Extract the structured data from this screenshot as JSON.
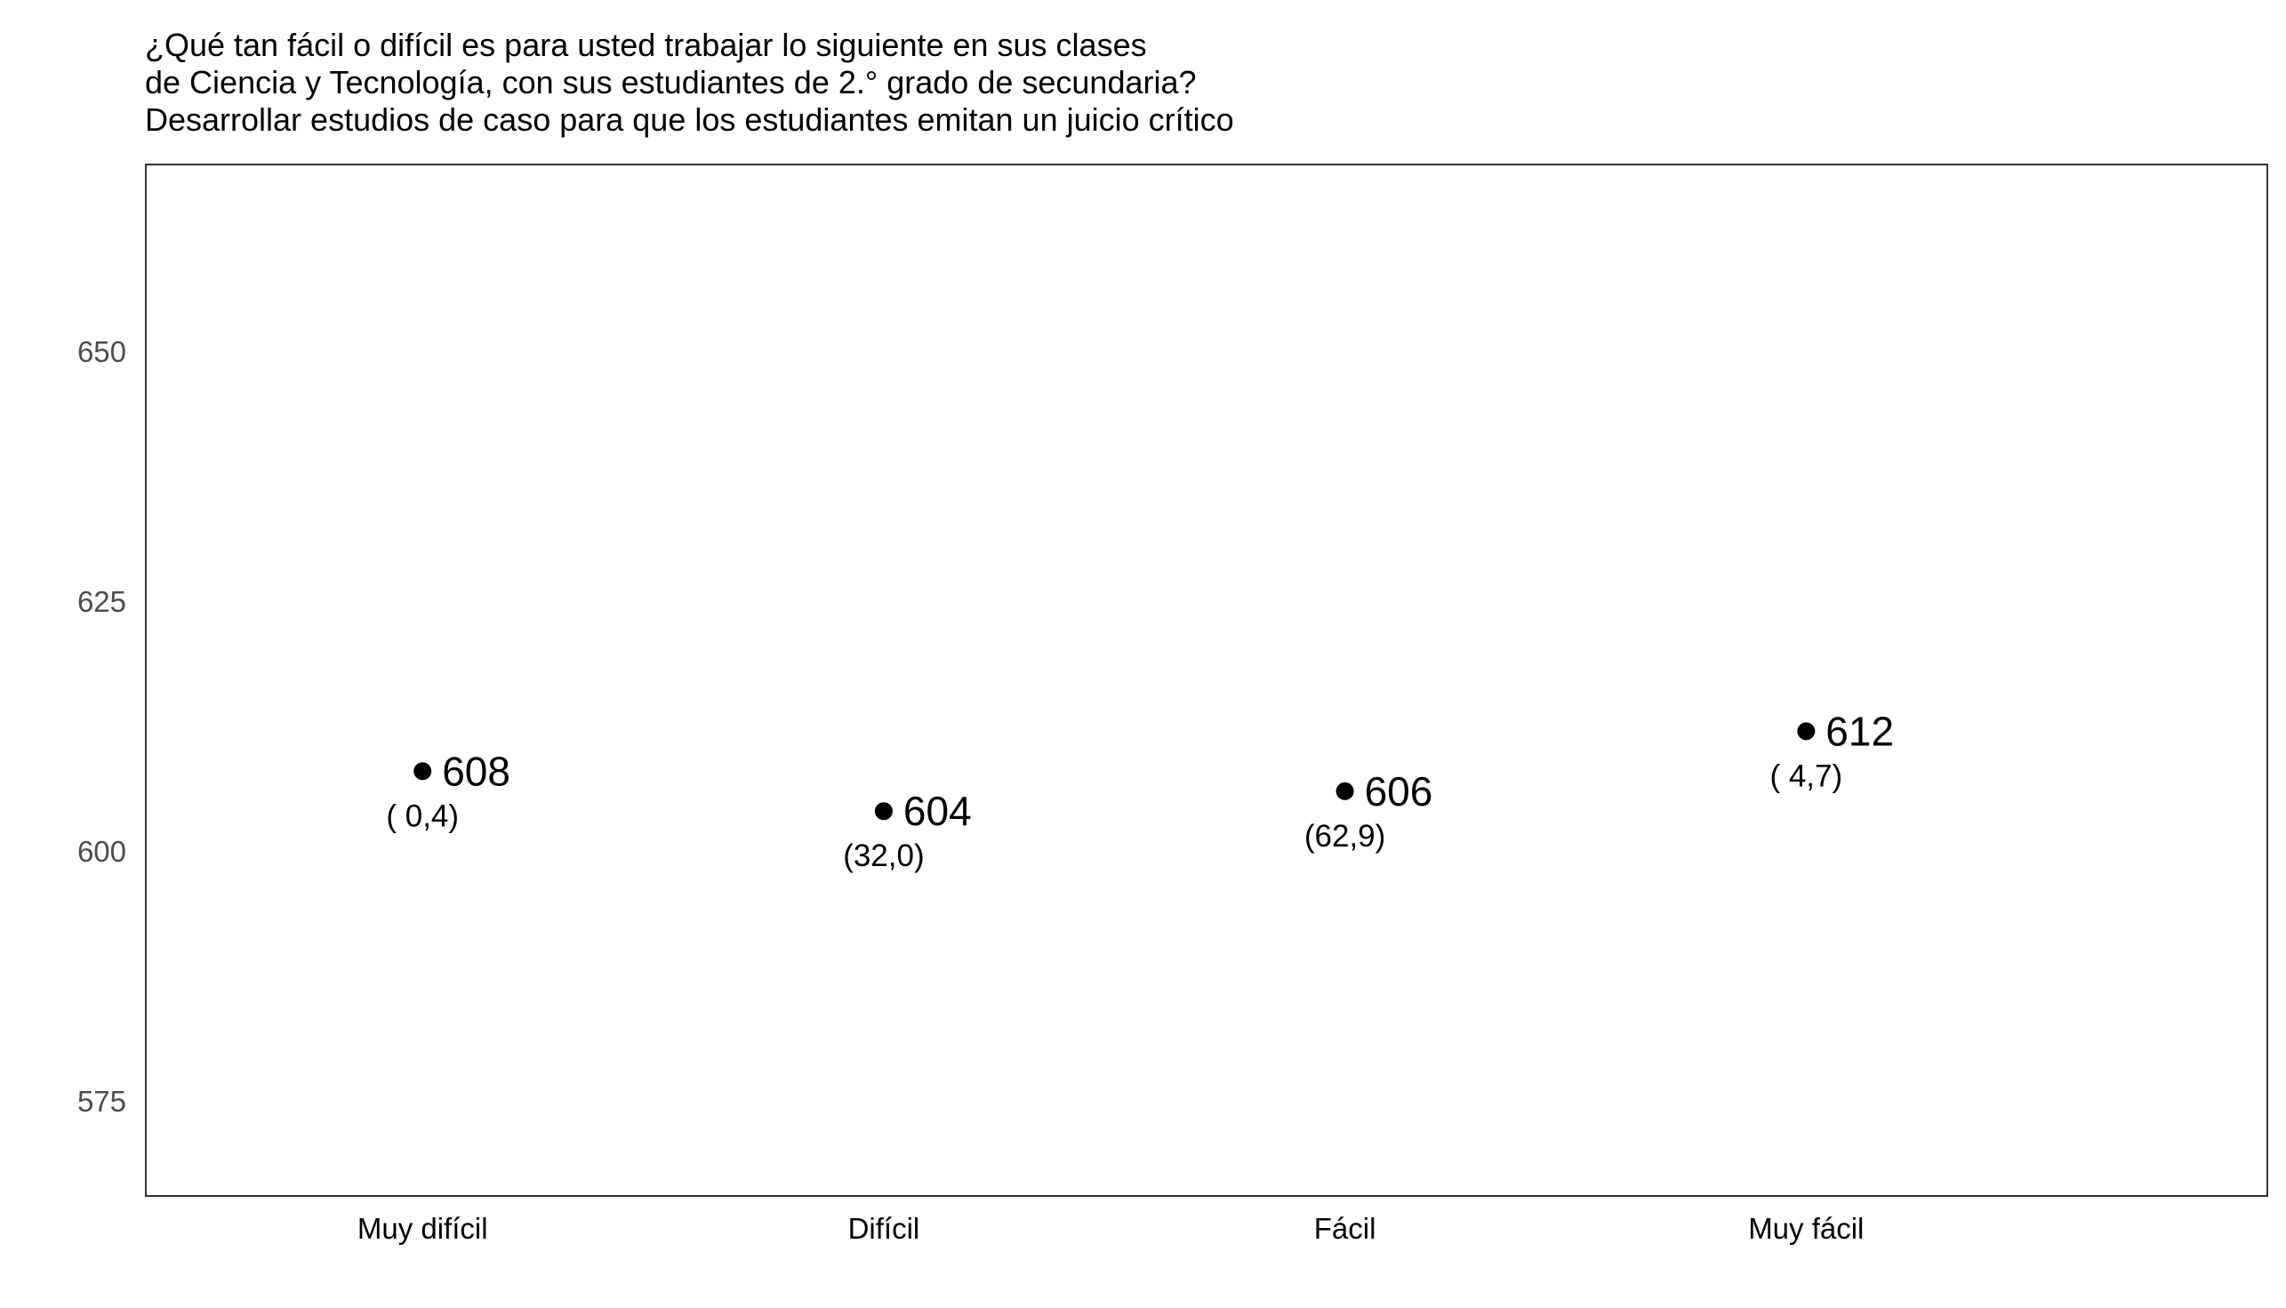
{
  "chart_data": {
    "type": "scatter",
    "title_lines": [
      "¿Qué tan fácil o difícil es para usted trabajar lo siguiente en sus clases",
      "de Ciencia y Tecnología, con sus estudiantes de 2.° grado de secundaria?",
      "Desarrollar estudios de caso para que los estudiantes emitan un juicio crítico"
    ],
    "categories": [
      "Muy difícil",
      "Difícil",
      "Fácil",
      "Muy fácil"
    ],
    "values": [
      608,
      604,
      606,
      612
    ],
    "value_labels": [
      "608",
      "604",
      "606",
      "612"
    ],
    "percent_labels": [
      "( 0,4)",
      "(32,0)",
      "(62,9)",
      "( 4,7)"
    ],
    "y_ticks": [
      "575",
      "600",
      "625",
      "650"
    ],
    "ylim": [
      565.5,
      668.7
    ],
    "grid": false,
    "point_color": "#000000"
  }
}
